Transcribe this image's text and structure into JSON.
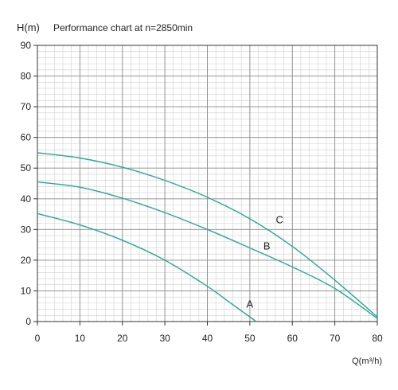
{
  "chart_data": {
    "type": "line",
    "title": "Performance chart at n=2850min",
    "ylabel": "H(m)",
    "xlabel": "Q(m³/h)",
    "xlim": [
      0,
      80
    ],
    "ylim": [
      0,
      90
    ],
    "x_ticks": [
      0,
      10,
      20,
      30,
      40,
      50,
      60,
      70,
      80
    ],
    "y_ticks": [
      0,
      10,
      20,
      30,
      40,
      50,
      60,
      70,
      80,
      90
    ],
    "grid": true,
    "minor_grid_step_x": 2,
    "minor_grid_step_y": 2,
    "line_color": "#2aa69a",
    "series": [
      {
        "name": "A",
        "x": [
          0,
          10,
          20,
          30,
          40,
          45,
          51.5
        ],
        "y": [
          35.2,
          31.5,
          26.5,
          20,
          11.5,
          6.5,
          0
        ]
      },
      {
        "name": "B",
        "x": [
          0,
          10,
          20,
          30,
          40,
          50,
          60,
          70,
          80
        ],
        "y": [
          45.5,
          43.8,
          40.2,
          35.5,
          30,
          24,
          17.8,
          10.8,
          1
        ]
      },
      {
        "name": "C",
        "x": [
          0,
          10,
          20,
          30,
          40,
          50,
          60,
          70,
          80
        ],
        "y": [
          55,
          53.3,
          50.3,
          46,
          40.5,
          33.5,
          24.5,
          13.5,
          1.5
        ]
      }
    ]
  }
}
